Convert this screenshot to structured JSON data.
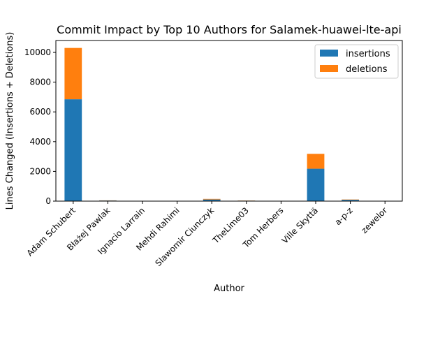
{
  "chart_data": {
    "type": "bar",
    "stacked": true,
    "title": "Commit Impact by Top 10 Authors for Salamek-huawei-lte-api",
    "xlabel": "Author",
    "ylabel": "Lines Changed (Insertions + Deletions)",
    "categories": [
      "Adam Schubert",
      "Błażej Pawlak",
      "Ignacio Larrain",
      "Mehdi Rahimi",
      "Slawomir Ciunczyk",
      "TheLime03",
      "Tom Herbers",
      "Ville Skyttä",
      "a-p-z",
      "zewelor"
    ],
    "series": [
      {
        "name": "insertions",
        "color": "#1f77b4",
        "values": [
          6850,
          40,
          5,
          5,
          110,
          30,
          5,
          2180,
          90,
          10
        ]
      },
      {
        "name": "deletions",
        "color": "#ff7f0e",
        "values": [
          3450,
          10,
          2,
          2,
          40,
          10,
          2,
          1000,
          20,
          3
        ]
      }
    ],
    "ylim": [
      0,
      10800
    ],
    "yticks": [
      0,
      2000,
      4000,
      6000,
      8000,
      10000
    ],
    "ytick_labels": [
      "0",
      "2000",
      "4000",
      "6000",
      "8000",
      "10000"
    ],
    "grid": false,
    "legend_position": "top-right"
  }
}
